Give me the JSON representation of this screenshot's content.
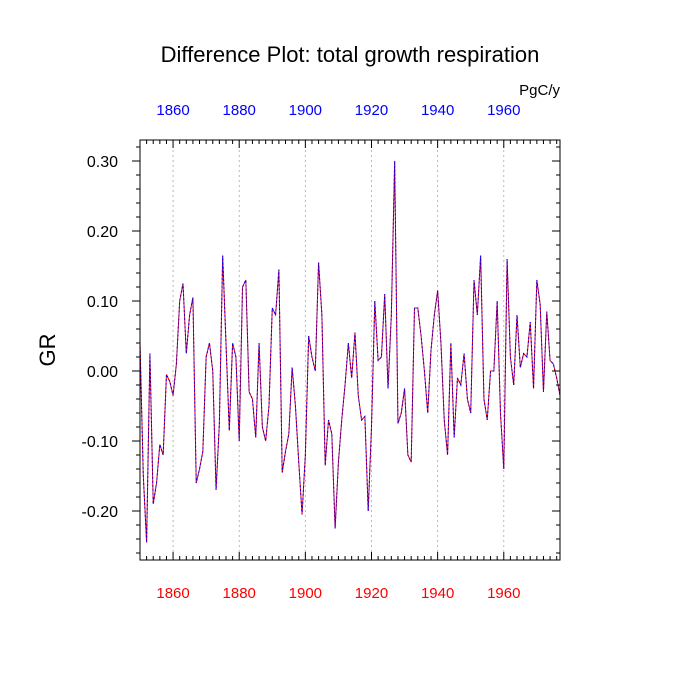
{
  "chart_data": {
    "type": "line",
    "title": "Difference Plot: total growth respiration",
    "units": "PgC/y",
    "ylabel": "GR",
    "xlabel": "",
    "xlim": [
      1850,
      1977
    ],
    "ylim": [
      -0.27,
      0.33
    ],
    "x_ticks": [
      1860,
      1880,
      1900,
      1920,
      1940,
      1960
    ],
    "x_tick_labels": [
      "1860",
      "1880",
      "1900",
      "1920",
      "1940",
      "1960"
    ],
    "y_ticks": [
      -0.2,
      -0.1,
      0.0,
      0.1,
      0.2,
      0.3
    ],
    "y_tick_labels": [
      "-0.20",
      "-0.10",
      "0.00",
      "0.10",
      "0.20",
      "0.30"
    ],
    "grid": "vertical dotted at major x ticks",
    "colors": {
      "top_axis_labels": "#0000ff",
      "bottom_axis_labels": "#ff0000",
      "series_a": "#ff0000",
      "series_b": "#0000ff",
      "grid": "#aaaaaa"
    },
    "series": [
      {
        "line_style": "dashed overlay (red and blue)",
        "x": [
          1850,
          1851,
          1852,
          1853,
          1854,
          1855,
          1856,
          1857,
          1858,
          1859,
          1860,
          1861,
          1862,
          1863,
          1864,
          1865,
          1866,
          1867,
          1868,
          1869,
          1870,
          1871,
          1872,
          1873,
          1874,
          1875,
          1876,
          1877,
          1878,
          1879,
          1880,
          1881,
          1882,
          1883,
          1884,
          1885,
          1886,
          1887,
          1888,
          1889,
          1890,
          1891,
          1892,
          1893,
          1894,
          1895,
          1896,
          1897,
          1898,
          1899,
          1900,
          1901,
          1902,
          1903,
          1904,
          1905,
          1906,
          1907,
          1908,
          1909,
          1910,
          1911,
          1912,
          1913,
          1914,
          1915,
          1916,
          1917,
          1918,
          1919,
          1920,
          1921,
          1922,
          1923,
          1924,
          1925,
          1926,
          1927,
          1928,
          1929,
          1930,
          1931,
          1932,
          1933,
          1934,
          1935,
          1936,
          1937,
          1938,
          1939,
          1940,
          1941,
          1942,
          1943,
          1944,
          1945,
          1946,
          1947,
          1948,
          1949,
          1950,
          1951,
          1952,
          1953,
          1954,
          1955,
          1956,
          1957,
          1958,
          1959,
          1960,
          1961,
          1962,
          1963,
          1964,
          1965,
          1966,
          1967,
          1968,
          1969,
          1970,
          1971,
          1972,
          1973,
          1974,
          1975,
          1976,
          1977
        ],
        "values": [
          0.04,
          -0.15,
          -0.245,
          0.025,
          -0.19,
          -0.16,
          -0.105,
          -0.12,
          -0.005,
          -0.015,
          -0.035,
          0.01,
          0.1,
          0.125,
          0.025,
          0.08,
          0.105,
          -0.16,
          -0.14,
          -0.115,
          0.02,
          0.04,
          0.0,
          -0.17,
          -0.075,
          0.165,
          0.04,
          -0.085,
          0.04,
          0.02,
          -0.1,
          0.12,
          0.13,
          -0.03,
          -0.04,
          -0.095,
          0.04,
          -0.08,
          -0.1,
          -0.05,
          0.09,
          0.08,
          0.145,
          -0.145,
          -0.115,
          -0.09,
          0.005,
          -0.05,
          -0.13,
          -0.205,
          -0.12,
          0.05,
          0.02,
          0.0,
          0.155,
          0.08,
          -0.135,
          -0.07,
          -0.09,
          -0.225,
          -0.13,
          -0.07,
          -0.02,
          0.04,
          -0.01,
          0.055,
          -0.035,
          -0.07,
          -0.065,
          -0.2,
          -0.08,
          0.1,
          0.015,
          0.02,
          0.11,
          -0.025,
          0.08,
          0.3,
          -0.075,
          -0.06,
          -0.025,
          -0.12,
          -0.13,
          0.09,
          0.09,
          0.05,
          0.0,
          -0.06,
          0.03,
          0.08,
          0.115,
          0.04,
          -0.07,
          -0.12,
          0.04,
          -0.095,
          -0.01,
          -0.02,
          0.025,
          -0.04,
          -0.06,
          0.13,
          0.08,
          0.165,
          -0.04,
          -0.07,
          0.0,
          0.0,
          0.1,
          -0.06,
          -0.14,
          0.16,
          0.02,
          -0.02,
          0.08,
          0.005,
          0.025,
          0.02,
          0.07,
          -0.025,
          0.13,
          0.095,
          -0.03,
          0.085,
          0.015,
          0.01,
          -0.01,
          -0.035
        ]
      }
    ]
  }
}
